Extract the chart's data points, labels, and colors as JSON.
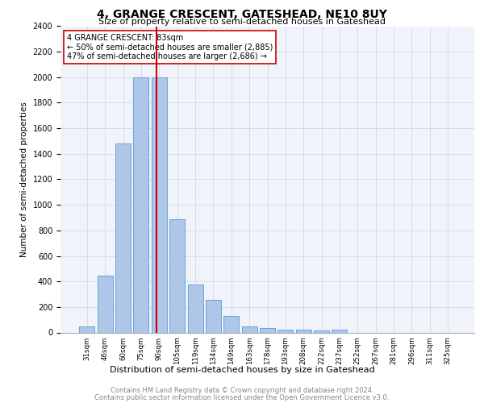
{
  "title": "4, GRANGE CRESCENT, GATESHEAD, NE10 8UY",
  "subtitle": "Size of property relative to semi-detached houses in Gateshead",
  "xlabel": "Distribution of semi-detached houses by size in Gateshead",
  "ylabel": "Number of semi-detached properties",
  "bar_labels": [
    "31sqm",
    "46sqm",
    "60sqm",
    "75sqm",
    "90sqm",
    "105sqm",
    "119sqm",
    "134sqm",
    "149sqm",
    "163sqm",
    "178sqm",
    "193sqm",
    "208sqm",
    "222sqm",
    "237sqm",
    "252sqm",
    "267sqm",
    "281sqm",
    "296sqm",
    "311sqm",
    "325sqm"
  ],
  "bar_values": [
    45,
    445,
    1480,
    2000,
    2000,
    890,
    375,
    255,
    130,
    45,
    35,
    25,
    20,
    15,
    20,
    0,
    0,
    0,
    0,
    0,
    0
  ],
  "bar_color": "#aec6e8",
  "bar_edgecolor": "#5b9bd5",
  "property_label": "4 GRANGE CRESCENT: 83sqm",
  "annotation_line1": "← 50% of semi-detached houses are smaller (2,885)",
  "annotation_line2": "47% of semi-detached houses are larger (2,686) →",
  "vline_color": "#cc0000",
  "vline_position": 3.85,
  "ylim": [
    0,
    2400
  ],
  "yticks": [
    0,
    200,
    400,
    600,
    800,
    1000,
    1200,
    1400,
    1600,
    1800,
    2000,
    2200,
    2400
  ],
  "footnote1": "Contains HM Land Registry data © Crown copyright and database right 2024.",
  "footnote2": "Contains public sector information licensed under the Open Government Licence v3.0.",
  "grid_color": "#d0d8e8",
  "background_color": "#f0f4fa"
}
